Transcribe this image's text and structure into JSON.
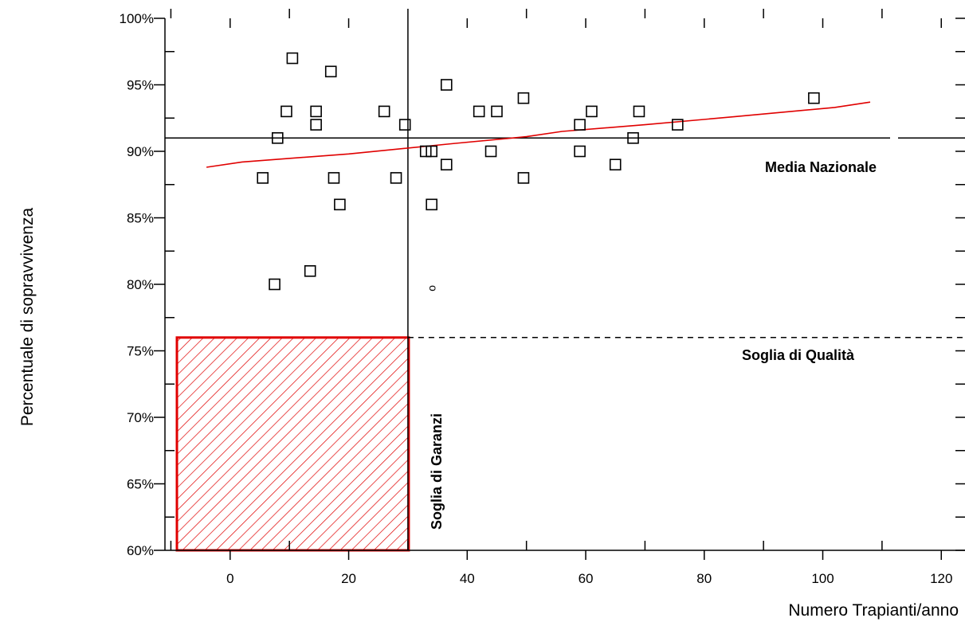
{
  "chart_data": {
    "type": "scatter",
    "xlabel": "Numero Trapianti/anno",
    "ylabel": "Percentuale di sopravvivenza",
    "xlim": [
      -11,
      124
    ],
    "ylim": [
      60,
      100
    ],
    "x_ticks": [
      0,
      20,
      40,
      60,
      80,
      100,
      120
    ],
    "y_ticks": [
      {
        "value": 60,
        "label": "60%"
      },
      {
        "value": 65,
        "label": "65%"
      },
      {
        "value": 70,
        "label": "70%"
      },
      {
        "value": 75,
        "label": "75%"
      },
      {
        "value": 80,
        "label": "80%"
      },
      {
        "value": 85,
        "label": "85%"
      },
      {
        "value": 90,
        "label": "90%"
      },
      {
        "value": 95,
        "label": "95%"
      },
      {
        "value": 100,
        "label": "100%"
      }
    ],
    "points": [
      {
        "x": 10.5,
        "y": 97
      },
      {
        "x": 17,
        "y": 96
      },
      {
        "x": 9.5,
        "y": 93
      },
      {
        "x": 14.5,
        "y": 93
      },
      {
        "x": 14.5,
        "y": 92
      },
      {
        "x": 26,
        "y": 93
      },
      {
        "x": 29.5,
        "y": 92
      },
      {
        "x": 8,
        "y": 91
      },
      {
        "x": 5.5,
        "y": 88
      },
      {
        "x": 17.5,
        "y": 88
      },
      {
        "x": 28,
        "y": 88
      },
      {
        "x": 18.5,
        "y": 86
      },
      {
        "x": 7.5,
        "y": 80
      },
      {
        "x": 13.5,
        "y": 81
      },
      {
        "x": 36.5,
        "y": 95
      },
      {
        "x": 33,
        "y": 90
      },
      {
        "x": 34,
        "y": 90
      },
      {
        "x": 36.5,
        "y": 89
      },
      {
        "x": 34,
        "y": 86
      },
      {
        "x": 42,
        "y": 93
      },
      {
        "x": 45,
        "y": 93
      },
      {
        "x": 44,
        "y": 90
      },
      {
        "x": 49.5,
        "y": 94
      },
      {
        "x": 49.5,
        "y": 88
      },
      {
        "x": 59,
        "y": 92
      },
      {
        "x": 59,
        "y": 90
      },
      {
        "x": 61,
        "y": 93
      },
      {
        "x": 65,
        "y": 89
      },
      {
        "x": 68,
        "y": 91
      },
      {
        "x": 69,
        "y": 93
      },
      {
        "x": 75.5,
        "y": 92
      },
      {
        "x": 98.5,
        "y": 94
      }
    ],
    "trend_line": [
      {
        "x": -4,
        "y": 88.8
      },
      {
        "x": 2,
        "y": 89.2
      },
      {
        "x": 20,
        "y": 89.8
      },
      {
        "x": 38,
        "y": 90.6
      },
      {
        "x": 50,
        "y": 91.1
      },
      {
        "x": 56,
        "y": 91.5
      },
      {
        "x": 70,
        "y": 92
      },
      {
        "x": 85,
        "y": 92.6
      },
      {
        "x": 102,
        "y": 93.3
      },
      {
        "x": 108,
        "y": 93.7
      }
    ],
    "reference_lines": [
      {
        "name": "media-nazionale",
        "orientation": "horizontal",
        "value": 91,
        "label": "Media Nazionale"
      },
      {
        "name": "soglia-qualita",
        "orientation": "horizontal",
        "value": 76,
        "style": "dashed",
        "label": "Soglia di Qualità"
      },
      {
        "name": "soglia-garanzia",
        "orientation": "vertical",
        "value": 30,
        "label": "Soglia di Garanzi"
      }
    ],
    "stray_mark": {
      "text": "ο",
      "x": 34,
      "y": 80
    },
    "hatched_region": {
      "x0": -11,
      "x1": 30,
      "y0": 60,
      "y1": 76
    },
    "colors": {
      "trend": "#e00000",
      "hatch": "#e00000",
      "axes": "#000000"
    }
  }
}
